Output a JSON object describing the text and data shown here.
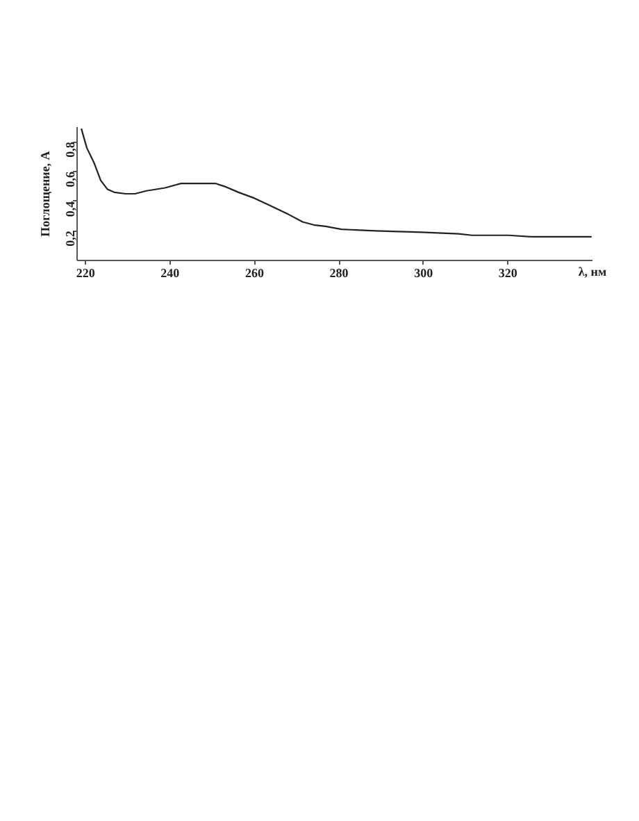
{
  "chart_data": {
    "type": "line",
    "xlabel": "λ, нм",
    "ylabel": "Поглощение, A",
    "xlim": [
      218,
      340
    ],
    "xticks": [
      220,
      240,
      260,
      280,
      300,
      320
    ],
    "ylim": [
      0,
      0.9
    ],
    "yticks": [
      {
        "value": 0.2,
        "label": "0,2"
      },
      {
        "value": 0.4,
        "label": "0,4"
      },
      {
        "value": 0.6,
        "label": "0,6"
      },
      {
        "value": 0.8,
        "label": "0,8"
      }
    ],
    "grid": false,
    "series": [
      {
        "color": "#222222",
        "x": [
          219,
          220.3,
          222,
          223.6,
          225.2,
          226.8,
          229.5,
          231.7,
          234.4,
          238.8,
          242.6,
          245.8,
          250.7,
          252.9,
          256.2,
          260,
          263.7,
          268.1,
          271.4,
          274,
          276.8,
          280.6,
          288.7,
          299.6,
          308.3,
          311.5,
          320.2,
          325.6,
          339.8
        ],
        "values": [
          0.89,
          0.76,
          0.66,
          0.54,
          0.48,
          0.46,
          0.45,
          0.45,
          0.47,
          0.49,
          0.52,
          0.52,
          0.52,
          0.5,
          0.46,
          0.42,
          0.37,
          0.31,
          0.26,
          0.24,
          0.23,
          0.21,
          0.2,
          0.19,
          0.18,
          0.17,
          0.17,
          0.16,
          0.16
        ]
      }
    ]
  }
}
